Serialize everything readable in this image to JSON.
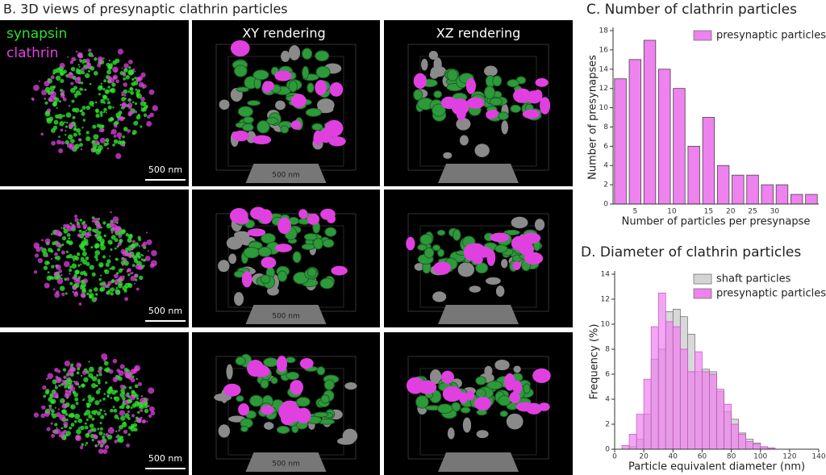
{
  "panel_b": {
    "title": "B.  3D views of presynaptic clathrin particles",
    "legend": [
      {
        "label": "synapsin",
        "color": "#2fe02f"
      },
      {
        "label": "clathrin",
        "color": "#e040e0"
      }
    ],
    "column_titles": [
      "XY rendering",
      "XZ rendering"
    ],
    "scale_bar": "500 nm"
  },
  "chart_data": [
    {
      "type": "bar",
      "title": "C.  Number of clathrin particles",
      "x_label": "Number of particles per presynapse",
      "y_label": "Number of presynapses",
      "x": [
        1,
        2,
        3,
        4,
        5,
        6,
        7,
        8,
        9,
        10,
        11,
        12,
        13,
        14
      ],
      "series": [
        {
          "name": "presynaptic particles",
          "color": "#ee82ee",
          "values": [
            13,
            15,
            17,
            14,
            12,
            6,
            9,
            4,
            3,
            3,
            2,
            2,
            1,
            1
          ]
        }
      ],
      "xlim": [
        0.5,
        14.5
      ],
      "ylim": [
        0,
        18
      ],
      "xticks": [
        {
          "value": 2,
          "label": "5"
        },
        {
          "value": 4.5,
          "label": "10"
        },
        {
          "value": 7,
          "label": "15"
        },
        {
          "value": 8.5,
          "label": "20"
        },
        {
          "value": 10,
          "label": "25"
        },
        {
          "value": 11.5,
          "label": "30"
        }
      ],
      "yticks": [
        0,
        2,
        4,
        6,
        8,
        10,
        12,
        14,
        16,
        18
      ],
      "legend": "upper right"
    },
    {
      "type": "histogram",
      "title": "D.  Diameter of clathrin particles",
      "x_label": "Particle equivalent diameter (nm)",
      "y_label": "Frequency (%)",
      "bins": [
        5,
        10,
        15,
        20,
        25,
        30,
        35,
        40,
        45,
        50,
        55,
        60,
        65,
        70,
        75,
        80,
        85,
        90,
        95,
        100,
        105,
        110
      ],
      "series": [
        {
          "name": "shaft particles",
          "color": "#d4d4d4",
          "values": [
            0,
            0.2,
            0.8,
            2.8,
            7.2,
            8.0,
            11.0,
            11.2,
            10.6,
            9.2,
            6.2,
            6.4,
            6.2,
            4.6,
            3.0,
            2.4,
            1.3,
            0.8,
            0.5,
            0.2,
            0.1
          ]
        },
        {
          "name": "presynaptic particles",
          "color": "#ee82ee",
          "values": [
            0.3,
            1.2,
            2.8,
            5.6,
            9.8,
            12.5,
            10.2,
            9.8,
            8.0,
            6.2,
            7.8,
            6.2,
            6.0,
            4.8,
            3.6,
            2.0,
            1.2,
            0.6,
            0.4,
            0.2,
            0.1
          ]
        }
      ],
      "xlim": [
        0,
        140
      ],
      "ylim": [
        0,
        14
      ],
      "xticks": [
        0,
        20,
        40,
        60,
        80,
        100,
        120,
        140
      ],
      "yticks": [
        0,
        2,
        4,
        6,
        8,
        10,
        12,
        14
      ],
      "legend": "upper right"
    }
  ]
}
